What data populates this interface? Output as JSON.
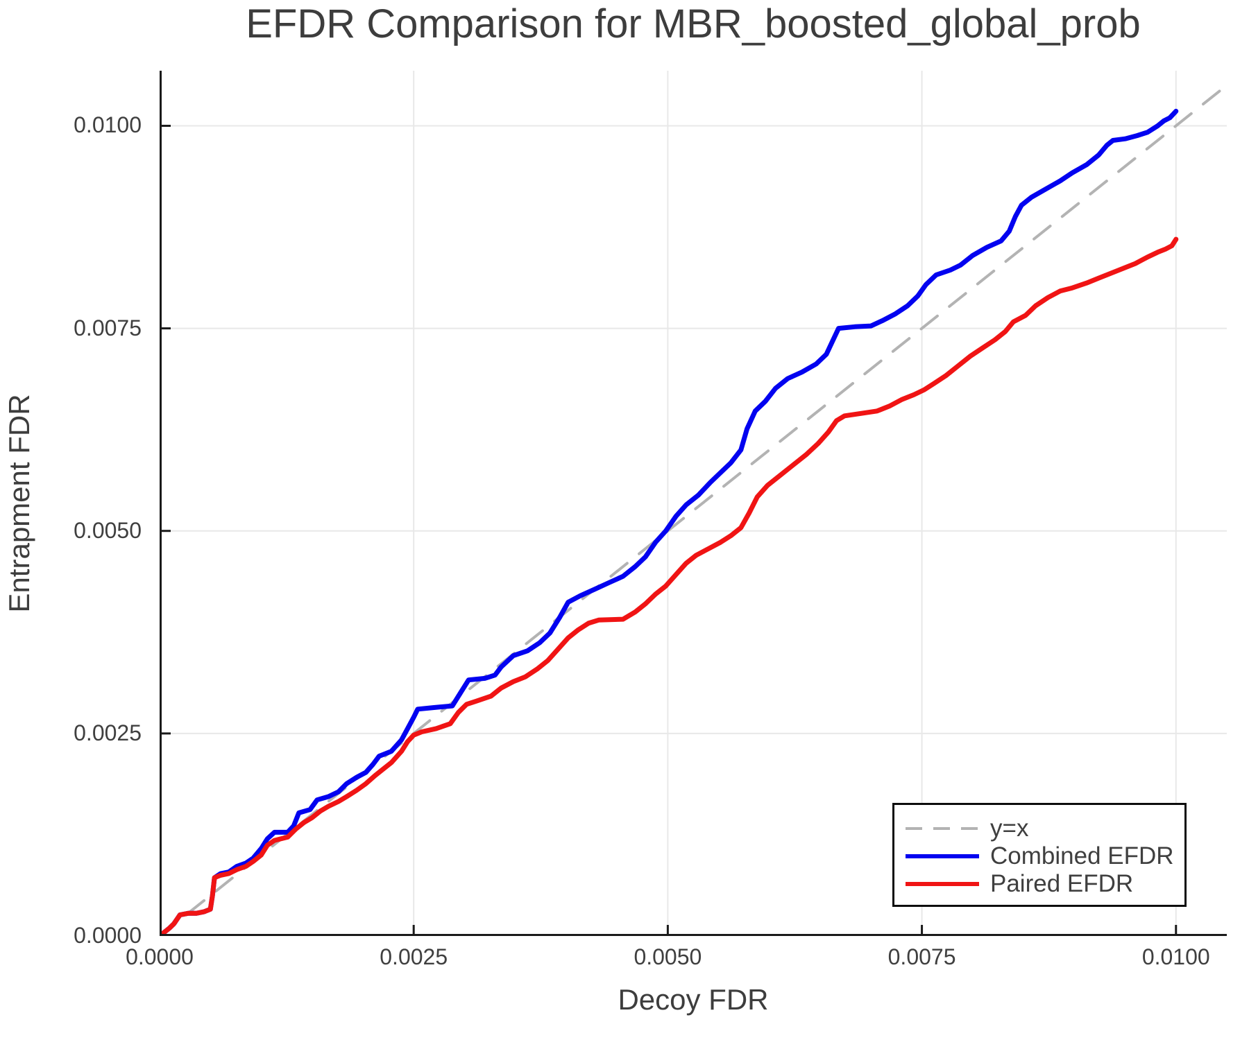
{
  "title": "EFDR Comparison for MBR_boosted_global_prob",
  "chart_data": {
    "type": "line",
    "title": "EFDR Comparison for MBR_boosted_global_prob",
    "xlabel": "Decoy FDR",
    "ylabel": "Entrapment FDR",
    "xlim": [
      0,
      0.0105
    ],
    "ylim": [
      0,
      0.01068
    ],
    "grid": true,
    "grid_color": "#e8e8e8",
    "spine_color": "#1a1a1a",
    "tick_label_color": "#3f3f3f",
    "legend_position": "lower right",
    "x_ticks": [
      0.0,
      0.0025,
      0.005,
      0.0075,
      0.01
    ],
    "x_tick_labels": [
      "0.0000",
      "0.0025",
      "0.0050",
      "0.0075",
      "0.0100"
    ],
    "y_ticks": [
      0.0,
      0.0025,
      0.005,
      0.0075,
      0.01
    ],
    "y_tick_labels": [
      "0.0000",
      "0.0025",
      "0.0050",
      "0.0075",
      "0.0100"
    ],
    "series": [
      {
        "name": "y=x",
        "id": "identity-line",
        "style": "dashed",
        "color": "#b3b3b3",
        "points": [
          [
            0,
            0
          ],
          [
            0.0105,
            0.0105
          ]
        ]
      },
      {
        "name": "Combined EFDR",
        "id": "combined-efdr-line",
        "style": "solid",
        "color": "#0202f0",
        "points": [
          [
            0,
            0
          ],
          [
            0.0001,
            0.0001
          ],
          [
            0.00014,
            0.00015
          ],
          [
            0.0002,
            0.00026
          ],
          [
            0.00028,
            0.00028
          ],
          [
            0.00036,
            0.00028
          ],
          [
            0.00044,
            0.0003
          ],
          [
            0.0005,
            0.00033
          ],
          [
            0.00052,
            0.0005
          ],
          [
            0.00054,
            0.00072
          ],
          [
            0.0006,
            0.00077
          ],
          [
            0.00068,
            0.00079
          ],
          [
            0.00076,
            0.00086
          ],
          [
            0.00085,
            0.0009
          ],
          [
            0.00092,
            0.00096
          ],
          [
            0.001,
            0.00108
          ],
          [
            0.00106,
            0.0012
          ],
          [
            0.00113,
            0.00128
          ],
          [
            0.00126,
            0.00128
          ],
          [
            0.00132,
            0.00136
          ],
          [
            0.00137,
            0.00152
          ],
          [
            0.00148,
            0.00156
          ],
          [
            0.00155,
            0.00168
          ],
          [
            0.00166,
            0.00172
          ],
          [
            0.00176,
            0.00178
          ],
          [
            0.00184,
            0.00188
          ],
          [
            0.00194,
            0.00196
          ],
          [
            0.00203,
            0.00202
          ],
          [
            0.0021,
            0.00212
          ],
          [
            0.00216,
            0.00222
          ],
          [
            0.00228,
            0.00228
          ],
          [
            0.00238,
            0.00242
          ],
          [
            0.00244,
            0.00256
          ],
          [
            0.0025,
            0.0027
          ],
          [
            0.00254,
            0.0028
          ],
          [
            0.0027,
            0.00282
          ],
          [
            0.00288,
            0.00284
          ],
          [
            0.00296,
            0.003
          ],
          [
            0.00304,
            0.00316
          ],
          [
            0.0032,
            0.00318
          ],
          [
            0.0033,
            0.00322
          ],
          [
            0.00336,
            0.00332
          ],
          [
            0.00348,
            0.00346
          ],
          [
            0.00362,
            0.00352
          ],
          [
            0.00374,
            0.00362
          ],
          [
            0.00384,
            0.00374
          ],
          [
            0.00394,
            0.00394
          ],
          [
            0.00402,
            0.00412
          ],
          [
            0.00414,
            0.0042
          ],
          [
            0.00428,
            0.00428
          ],
          [
            0.00442,
            0.00436
          ],
          [
            0.00456,
            0.00444
          ],
          [
            0.00468,
            0.00456
          ],
          [
            0.00478,
            0.00468
          ],
          [
            0.00488,
            0.00486
          ],
          [
            0.00498,
            0.005
          ],
          [
            0.00508,
            0.00518
          ],
          [
            0.00518,
            0.00532
          ],
          [
            0.0053,
            0.00544
          ],
          [
            0.00542,
            0.0056
          ],
          [
            0.00552,
            0.00572
          ],
          [
            0.00562,
            0.00584
          ],
          [
            0.00572,
            0.006
          ],
          [
            0.00578,
            0.00626
          ],
          [
            0.00586,
            0.00648
          ],
          [
            0.00596,
            0.0066
          ],
          [
            0.00606,
            0.00676
          ],
          [
            0.00618,
            0.00688
          ],
          [
            0.00632,
            0.00696
          ],
          [
            0.00646,
            0.00706
          ],
          [
            0.00656,
            0.00718
          ],
          [
            0.00662,
            0.00734
          ],
          [
            0.00668,
            0.0075
          ],
          [
            0.00684,
            0.00752
          ],
          [
            0.007,
            0.00753
          ],
          [
            0.00712,
            0.0076
          ],
          [
            0.00724,
            0.00768
          ],
          [
            0.00736,
            0.00778
          ],
          [
            0.00746,
            0.0079
          ],
          [
            0.00754,
            0.00804
          ],
          [
            0.00764,
            0.00816
          ],
          [
            0.00778,
            0.00822
          ],
          [
            0.00788,
            0.00828
          ],
          [
            0.008,
            0.0084
          ],
          [
            0.00814,
            0.0085
          ],
          [
            0.00828,
            0.00858
          ],
          [
            0.00836,
            0.0087
          ],
          [
            0.00842,
            0.00888
          ],
          [
            0.00848,
            0.00902
          ],
          [
            0.00858,
            0.00912
          ],
          [
            0.00872,
            0.00922
          ],
          [
            0.00886,
            0.00932
          ],
          [
            0.00898,
            0.00942
          ],
          [
            0.00912,
            0.00952
          ],
          [
            0.00924,
            0.00964
          ],
          [
            0.00932,
            0.00976
          ],
          [
            0.00938,
            0.00982
          ],
          [
            0.0095,
            0.00984
          ],
          [
            0.00962,
            0.00988
          ],
          [
            0.00972,
            0.00992
          ],
          [
            0.00982,
            0.01
          ],
          [
            0.00988,
            0.01006
          ],
          [
            0.00994,
            0.0101
          ],
          [
            0.01,
            0.01018
          ]
        ]
      },
      {
        "name": "Paired EFDR",
        "id": "paired-efdr-line",
        "style": "solid",
        "color": "#f01414",
        "points": [
          [
            0,
            0
          ],
          [
            0.0001,
            0.0001
          ],
          [
            0.00014,
            0.00015
          ],
          [
            0.0002,
            0.00026
          ],
          [
            0.00028,
            0.00028
          ],
          [
            0.00036,
            0.00028
          ],
          [
            0.00044,
            0.0003
          ],
          [
            0.0005,
            0.00033
          ],
          [
            0.00052,
            0.0005
          ],
          [
            0.00054,
            0.00072
          ],
          [
            0.0006,
            0.00075
          ],
          [
            0.00068,
            0.00077
          ],
          [
            0.00076,
            0.00082
          ],
          [
            0.00085,
            0.00086
          ],
          [
            0.00092,
            0.00092
          ],
          [
            0.001,
            0.001
          ],
          [
            0.00106,
            0.00112
          ],
          [
            0.00113,
            0.00118
          ],
          [
            0.00126,
            0.00122
          ],
          [
            0.00134,
            0.00132
          ],
          [
            0.00142,
            0.0014
          ],
          [
            0.0015,
            0.00146
          ],
          [
            0.00158,
            0.00154
          ],
          [
            0.00166,
            0.0016
          ],
          [
            0.00176,
            0.00166
          ],
          [
            0.00184,
            0.00172
          ],
          [
            0.00194,
            0.0018
          ],
          [
            0.00203,
            0.00188
          ],
          [
            0.00212,
            0.00198
          ],
          [
            0.0022,
            0.00206
          ],
          [
            0.00228,
            0.00214
          ],
          [
            0.00238,
            0.00228
          ],
          [
            0.00244,
            0.0024
          ],
          [
            0.0025,
            0.00248
          ],
          [
            0.00258,
            0.00252
          ],
          [
            0.00272,
            0.00256
          ],
          [
            0.00286,
            0.00262
          ],
          [
            0.00294,
            0.00276
          ],
          [
            0.00302,
            0.00286
          ],
          [
            0.00312,
            0.0029
          ],
          [
            0.00326,
            0.00296
          ],
          [
            0.00336,
            0.00306
          ],
          [
            0.00348,
            0.00314
          ],
          [
            0.0036,
            0.0032
          ],
          [
            0.00372,
            0.0033
          ],
          [
            0.00382,
            0.0034
          ],
          [
            0.00392,
            0.00354
          ],
          [
            0.00402,
            0.00368
          ],
          [
            0.00412,
            0.00378
          ],
          [
            0.00422,
            0.00386
          ],
          [
            0.00432,
            0.0039
          ],
          [
            0.00456,
            0.00391
          ],
          [
            0.00468,
            0.004
          ],
          [
            0.00478,
            0.0041
          ],
          [
            0.00488,
            0.00422
          ],
          [
            0.00498,
            0.00432
          ],
          [
            0.00508,
            0.00446
          ],
          [
            0.00518,
            0.0046
          ],
          [
            0.00528,
            0.0047
          ],
          [
            0.0054,
            0.00478
          ],
          [
            0.00552,
            0.00486
          ],
          [
            0.00562,
            0.00494
          ],
          [
            0.00572,
            0.00504
          ],
          [
            0.0058,
            0.00522
          ],
          [
            0.00588,
            0.00542
          ],
          [
            0.00598,
            0.00556
          ],
          [
            0.0061,
            0.00568
          ],
          [
            0.00622,
            0.0058
          ],
          [
            0.00636,
            0.00594
          ],
          [
            0.00648,
            0.00608
          ],
          [
            0.00658,
            0.00622
          ],
          [
            0.00666,
            0.00636
          ],
          [
            0.00674,
            0.00642
          ],
          [
            0.0069,
            0.00645
          ],
          [
            0.00706,
            0.00648
          ],
          [
            0.00718,
            0.00654
          ],
          [
            0.0073,
            0.00662
          ],
          [
            0.00742,
            0.00668
          ],
          [
            0.00752,
            0.00674
          ],
          [
            0.00762,
            0.00682
          ],
          [
            0.00774,
            0.00692
          ],
          [
            0.00786,
            0.00704
          ],
          [
            0.00798,
            0.00716
          ],
          [
            0.0081,
            0.00726
          ],
          [
            0.00822,
            0.00736
          ],
          [
            0.00832,
            0.00746
          ],
          [
            0.0084,
            0.00758
          ],
          [
            0.00852,
            0.00766
          ],
          [
            0.00862,
            0.00778
          ],
          [
            0.00874,
            0.00788
          ],
          [
            0.00886,
            0.00796
          ],
          [
            0.00898,
            0.008
          ],
          [
            0.00912,
            0.00806
          ],
          [
            0.00924,
            0.00812
          ],
          [
            0.00936,
            0.00818
          ],
          [
            0.00948,
            0.00824
          ],
          [
            0.0096,
            0.0083
          ],
          [
            0.00972,
            0.00838
          ],
          [
            0.00982,
            0.00844
          ],
          [
            0.0099,
            0.00848
          ],
          [
            0.00996,
            0.00852
          ],
          [
            0.01,
            0.0086
          ]
        ]
      }
    ]
  },
  "legend": {
    "items": [
      "y=x",
      "Combined EFDR",
      "Paired EFDR"
    ]
  }
}
